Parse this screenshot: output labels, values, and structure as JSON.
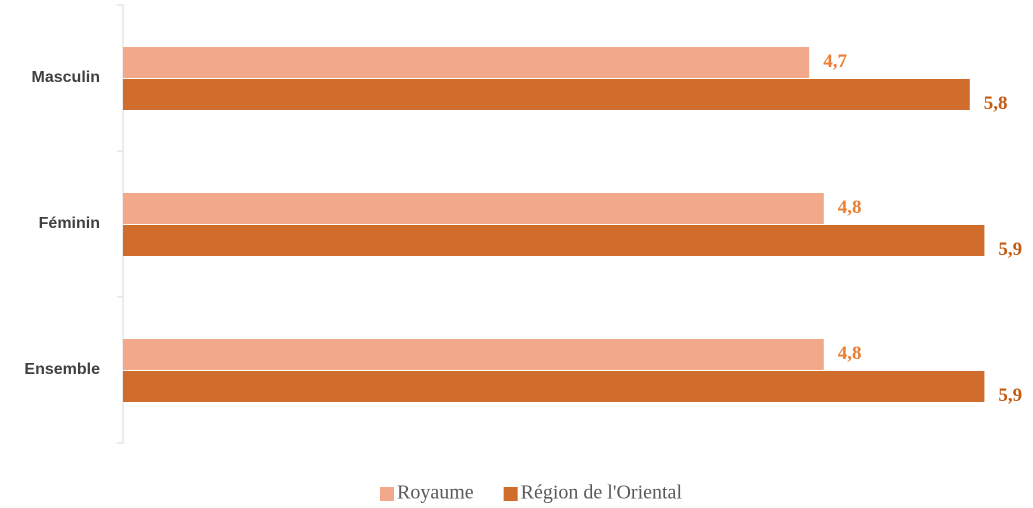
{
  "chart_data": {
    "type": "barh",
    "categories": [
      "Masculin",
      "Féminin",
      "Ensemble"
    ],
    "series": [
      {
        "name": "Royaume",
        "color": "#f2a98b",
        "label_color": "#ed7d31",
        "values": [
          4.7,
          4.8,
          4.8
        ],
        "value_labels": [
          "4,7",
          "4,8",
          "4,8"
        ]
      },
      {
        "name": "Région de l'Oriental",
        "color": "#d06c2c",
        "label_color": "#c55a11",
        "values": [
          5.8,
          5.9,
          5.9
        ],
        "value_labels": [
          "5,8",
          "5,9",
          "5,9"
        ]
      }
    ],
    "xlim": [
      0,
      6
    ],
    "legend": "bottom"
  }
}
